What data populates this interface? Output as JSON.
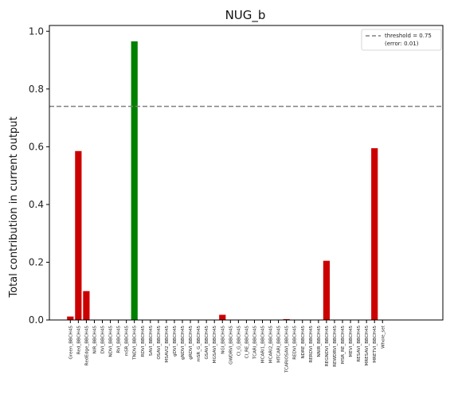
{
  "chart_data": {
    "type": "bar",
    "title": "NUG_b",
    "xlabel": "",
    "ylabel": "Total contribution in current output",
    "ylim": [
      0,
      1.02
    ],
    "yticks": [
      0.0,
      0.2,
      0.4,
      0.6,
      0.8,
      1.0
    ],
    "ytick_labels": [
      "0.0",
      "0.2",
      "0.4",
      "0.6",
      "0.8",
      "1.0"
    ],
    "grid": false,
    "legend_position": "top-right",
    "categories": [
      "Green_BBCH45",
      "Red_BBCH45",
      "RedEdge_BBCH45",
      "NIR_BBCH45",
      "DVI_BBCH45",
      "NDVI_BBCH45",
      "RVI_BBCH45",
      "mSR_BBCH45",
      "TNDVI_BBCH45",
      "RDVI_BBCH45",
      "SAVI_BBCH45",
      "OSAVI_BBCH45",
      "MSAVI2_BBCH45",
      "gDVI_BBCH45",
      "gNDVI_BBCH45",
      "gRDVI_BBCH45",
      "mSR_G_BBCH45",
      "GSAVI_BBCH45",
      "MGSAVI_BBCH45",
      "NGI_BBCH45",
      "GWDRVI_BBCH45",
      "CI_G_BBCH45",
      "CI_RE_BBCH45",
      "TCARI_BBCH45",
      "MCARI1_BBCH45",
      "MCARI2_BBCH45",
      "MTCARI_BBCH45",
      "TCARIOSAVI_BBCH45",
      "REDVI_BBCH45",
      "NDRE_BBCH45",
      "RERDVI_BBCH45",
      "NNIR_BBCH45",
      "REGNDVI_BBCH45",
      "REWDRVI_BBCH45",
      "MSR_RE_BBCH45",
      "MEVI_BBCH45",
      "RESAVI_BBCH45",
      "MRESAVI_BBCH45",
      "MRETVI_BBCH45",
      "Whole_set"
    ],
    "values": [
      0.012,
      0.585,
      0.1,
      0,
      0,
      0,
      0,
      0,
      0.965,
      0,
      0,
      0,
      0,
      0,
      0,
      0,
      0,
      0,
      0,
      0.018,
      0,
      0,
      0,
      0,
      0,
      0,
      0,
      0.003,
      0,
      0,
      0,
      0,
      0.205,
      0,
      0,
      0,
      0,
      0,
      0.595,
      0
    ],
    "highlight_index": 8,
    "colors": {
      "bar": "#cc0000",
      "highlight": "#008000",
      "threshold": "#808080"
    },
    "threshold": {
      "value": 0.74,
      "legend_label_line1": "threshold = 0.75",
      "legend_label_line2": "(error: 0.01)"
    }
  }
}
